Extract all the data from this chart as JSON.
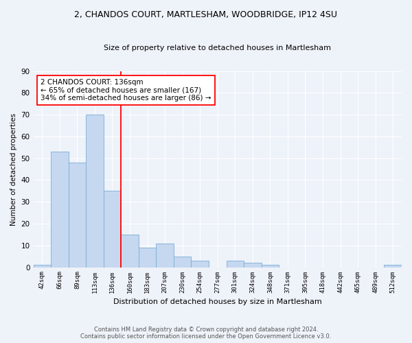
{
  "title_line1": "2, CHANDOS COURT, MARTLESHAM, WOODBRIDGE, IP12 4SU",
  "title_line2": "Size of property relative to detached houses in Martlesham",
  "xlabel": "Distribution of detached houses by size in Martlesham",
  "ylabel": "Number of detached properties",
  "categories": [
    "42sqm",
    "66sqm",
    "89sqm",
    "113sqm",
    "136sqm",
    "160sqm",
    "183sqm",
    "207sqm",
    "230sqm",
    "254sqm",
    "277sqm",
    "301sqm",
    "324sqm",
    "348sqm",
    "371sqm",
    "395sqm",
    "418sqm",
    "442sqm",
    "465sqm",
    "489sqm",
    "512sqm"
  ],
  "values": [
    1,
    53,
    48,
    70,
    35,
    15,
    9,
    11,
    5,
    3,
    0,
    3,
    2,
    1,
    0,
    0,
    0,
    0,
    0,
    0,
    1
  ],
  "bar_color": "#c5d8f0",
  "bar_edge_color": "#7aadd4",
  "vline_color": "red",
  "vline_x_index": 4,
  "ylim": [
    0,
    90
  ],
  "yticks": [
    0,
    10,
    20,
    30,
    40,
    50,
    60,
    70,
    80,
    90
  ],
  "annotation_text": "2 CHANDOS COURT: 136sqm\n← 65% of detached houses are smaller (167)\n34% of semi-detached houses are larger (86) →",
  "annotation_box_color": "white",
  "annotation_box_edge_color": "red",
  "footer_line1": "Contains HM Land Registry data © Crown copyright and database right 2024.",
  "footer_line2": "Contains public sector information licensed under the Open Government Licence v3.0.",
  "bg_color": "#eef2f9",
  "grid_color": "white"
}
